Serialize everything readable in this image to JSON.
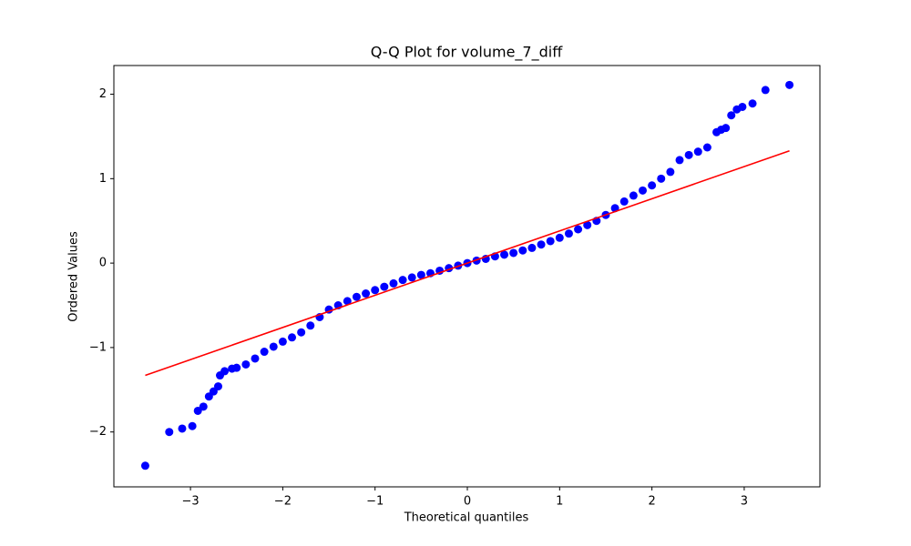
{
  "chart_data": {
    "type": "scatter",
    "title": "Q-Q Plot for volume_7_diff",
    "x_label": "Theoretical quantiles",
    "y_label": "Ordered Values",
    "xlim": [
      -3.83,
      3.82
    ],
    "ylim": [
      -2.65,
      2.34
    ],
    "xticks": [
      {
        "value": -3,
        "label": "−3"
      },
      {
        "value": -2,
        "label": "−2"
      },
      {
        "value": -1,
        "label": "−1"
      },
      0,
      1,
      2,
      3
    ],
    "yticks": [
      {
        "value": -2,
        "label": "−2"
      },
      {
        "value": -1,
        "label": "−1"
      },
      0,
      1,
      2
    ],
    "grid": false,
    "series": [
      {
        "style": "points",
        "color": "#0000ff",
        "x": [
          -3.49,
          -3.23,
          -3.09,
          -2.98,
          -2.92,
          -2.86,
          -2.8,
          -2.75,
          -2.7,
          -2.68,
          -2.63,
          -2.55,
          -2.5,
          -2.4,
          -2.3,
          -2.2,
          -2.1,
          -2.0,
          -1.9,
          -1.8,
          -1.7,
          -1.6,
          -1.5,
          -1.4,
          -1.3,
          -1.2,
          -1.1,
          -1.0,
          -0.9,
          -0.8,
          -0.7,
          -0.6,
          -0.5,
          -0.4,
          -0.3,
          -0.2,
          -0.1,
          0,
          0.1,
          0.2,
          0.3,
          0.4,
          0.5,
          0.6,
          0.7,
          0.8,
          0.9,
          1.0,
          1.1,
          1.2,
          1.3,
          1.4,
          1.5,
          1.6,
          1.7,
          1.8,
          1.9,
          2.0,
          2.1,
          2.2,
          2.3,
          2.4,
          2.5,
          2.6,
          2.7,
          2.75,
          2.8,
          2.86,
          2.92,
          2.98,
          3.09,
          3.23,
          3.49
        ],
        "values": [
          -2.4,
          -2.0,
          -1.96,
          -1.93,
          -1.75,
          -1.7,
          -1.58,
          -1.52,
          -1.46,
          -1.33,
          -1.28,
          -1.25,
          -1.24,
          -1.2,
          -1.13,
          -1.05,
          -0.99,
          -0.93,
          -0.88,
          -0.82,
          -0.74,
          -0.64,
          -0.55,
          -0.5,
          -0.45,
          -0.4,
          -0.36,
          -0.32,
          -0.28,
          -0.24,
          -0.2,
          -0.17,
          -0.14,
          -0.12,
          -0.09,
          -0.06,
          -0.03,
          0,
          0.03,
          0.05,
          0.08,
          0.1,
          0.12,
          0.15,
          0.18,
          0.22,
          0.26,
          0.3,
          0.35,
          0.4,
          0.45,
          0.5,
          0.57,
          0.65,
          0.73,
          0.8,
          0.86,
          0.92,
          1.0,
          1.08,
          1.22,
          1.28,
          1.32,
          1.37,
          1.55,
          1.58,
          1.6,
          1.75,
          1.82,
          1.85,
          1.89,
          2.05,
          2.11
        ]
      },
      {
        "style": "line",
        "color": "#ff0000",
        "x": [
          -3.49,
          3.49
        ],
        "values": [
          -1.33,
          1.33
        ]
      }
    ]
  }
}
